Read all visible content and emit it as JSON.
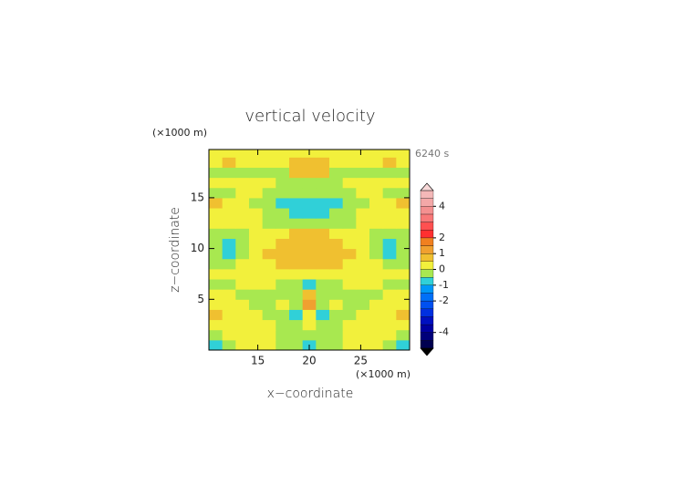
{
  "chart_data": {
    "type": "contour",
    "title": "vertical velocity",
    "time_label": "6240 s",
    "x_unit": "(×1000 m)",
    "y_unit": "(×1000 m)",
    "xlabel": "x−coordinate",
    "ylabel": "z−coordinate",
    "xlim": [
      10.25,
      29.75
    ],
    "ylim": [
      0,
      19.75
    ],
    "xticks": [
      15,
      20,
      25
    ],
    "yticks": [
      5,
      10,
      15
    ],
    "x": [
      10.9,
      12.2,
      13.5,
      14.8,
      16.1,
      17.4,
      18.7,
      20.0,
      21.3,
      22.6,
      23.9,
      25.2,
      26.5,
      27.8,
      29.1
    ],
    "y": [
      0.5,
      1.5,
      2.5,
      3.5,
      4.5,
      5.5,
      6.5,
      7.5,
      8.5,
      9.5,
      10.5,
      11.5,
      12.5,
      13.5,
      14.5,
      15.5,
      16.5,
      17.5,
      18.5,
      19.5
    ],
    "z": [
      [
        -0.7,
        -0.2,
        0.2,
        0.2,
        0.2,
        -0.2,
        -0.2,
        -0.7,
        -0.2,
        -0.2,
        0.2,
        0.2,
        0.2,
        -0.2,
        -0.7
      ],
      [
        -0.2,
        0.2,
        0.2,
        0.2,
        0.2,
        -0.2,
        -0.2,
        -0.2,
        -0.2,
        -0.2,
        0.2,
        0.2,
        0.2,
        0.2,
        -0.2
      ],
      [
        0.2,
        0.2,
        0.2,
        0.2,
        0.2,
        -0.2,
        -0.2,
        0.2,
        -0.2,
        -0.2,
        0.2,
        0.2,
        0.2,
        0.2,
        0.2
      ],
      [
        0.7,
        0.2,
        0.2,
        0.2,
        -0.2,
        -0.2,
        -0.7,
        0.2,
        -0.7,
        -0.2,
        -0.2,
        0.2,
        0.2,
        0.2,
        0.7
      ],
      [
        0.2,
        0.2,
        0.2,
        -0.2,
        -0.2,
        0.2,
        -0.2,
        1.2,
        -0.2,
        0.2,
        -0.2,
        -0.2,
        0.2,
        0.2,
        0.2
      ],
      [
        0.2,
        0.2,
        -0.2,
        -0.2,
        -0.2,
        -0.2,
        -0.2,
        0.7,
        -0.2,
        -0.2,
        -0.2,
        -0.2,
        -0.2,
        0.2,
        0.2
      ],
      [
        -0.2,
        -0.2,
        0.2,
        0.2,
        0.2,
        -0.2,
        -0.2,
        -0.7,
        -0.2,
        -0.2,
        0.2,
        0.2,
        0.2,
        -0.2,
        -0.2
      ],
      [
        0.2,
        0.2,
        0.2,
        0.2,
        0.2,
        0.2,
        0.2,
        0.2,
        0.2,
        0.2,
        0.2,
        0.2,
        0.2,
        0.2,
        0.2
      ],
      [
        -0.2,
        -0.2,
        0.2,
        0.2,
        0.2,
        0.7,
        0.7,
        0.7,
        0.7,
        0.7,
        0.2,
        0.2,
        0.2,
        -0.2,
        -0.2
      ],
      [
        -0.2,
        -0.7,
        -0.2,
        0.2,
        0.7,
        0.7,
        0.7,
        0.7,
        0.7,
        0.7,
        0.7,
        0.2,
        -0.2,
        -0.7,
        -0.2
      ],
      [
        -0.2,
        -0.7,
        -0.2,
        0.2,
        0.2,
        0.7,
        0.7,
        0.7,
        0.7,
        0.7,
        0.2,
        0.2,
        -0.2,
        -0.7,
        -0.2
      ],
      [
        -0.2,
        -0.2,
        -0.2,
        0.2,
        0.2,
        0.2,
        0.7,
        0.7,
        0.7,
        0.2,
        0.2,
        0.2,
        -0.2,
        -0.2,
        -0.2
      ],
      [
        0.2,
        0.2,
        0.2,
        0.2,
        -0.2,
        -0.2,
        -0.2,
        -0.2,
        -0.2,
        -0.2,
        -0.2,
        0.2,
        0.2,
        0.2,
        0.2
      ],
      [
        0.2,
        0.2,
        0.2,
        0.2,
        -0.2,
        -0.2,
        -0.7,
        -0.7,
        -0.7,
        -0.2,
        -0.2,
        0.2,
        0.2,
        0.2,
        0.2
      ],
      [
        0.7,
        0.2,
        0.2,
        -0.2,
        -0.2,
        -0.7,
        -0.7,
        -0.7,
        -0.7,
        -0.7,
        -0.2,
        -0.2,
        0.2,
        0.2,
        0.7
      ],
      [
        -0.2,
        -0.2,
        0.2,
        0.2,
        -0.2,
        -0.2,
        -0.2,
        -0.2,
        -0.2,
        -0.2,
        -0.2,
        0.2,
        0.2,
        -0.2,
        -0.2
      ],
      [
        0.2,
        0.2,
        0.2,
        0.2,
        0.2,
        -0.2,
        -0.2,
        -0.2,
        -0.2,
        -0.2,
        0.2,
        0.2,
        0.2,
        0.2,
        0.2
      ],
      [
        -0.2,
        -0.2,
        -0.2,
        -0.2,
        -0.2,
        -0.2,
        0.7,
        0.7,
        0.7,
        -0.2,
        -0.2,
        -0.2,
        -0.2,
        -0.2,
        -0.2
      ],
      [
        0.2,
        0.7,
        0.2,
        0.2,
        0.2,
        0.2,
        0.7,
        0.7,
        0.7,
        0.2,
        0.2,
        0.2,
        0.2,
        0.7,
        0.2
      ],
      [
        0.2,
        0.2,
        0.2,
        0.2,
        0.2,
        0.2,
        0.2,
        0.2,
        0.2,
        0.2,
        0.2,
        0.2,
        0.2,
        0.2,
        0.2
      ]
    ],
    "levels": [
      -5,
      -4.5,
      -4,
      -3.5,
      -3,
      -2.5,
      -2,
      -1.5,
      -1,
      -0.5,
      0,
      0.5,
      1,
      1.5,
      2,
      2.5,
      3,
      3.5,
      4,
      4.5,
      5
    ],
    "colors": [
      "#000050",
      "#00007a",
      "#0000a0",
      "#0010c0",
      "#0030e0",
      "#0050f0",
      "#0070f8",
      "#0098f8",
      "#30d0d8",
      "#a8e850",
      "#f2f03c",
      "#f0c030",
      "#f0a030",
      "#f08020",
      "#ff3030",
      "#ff5050",
      "#f87878",
      "#f49090",
      "#f4a8a8",
      "#f4b8b8"
    ],
    "over_color": "#f8d8d8",
    "under_color": "#000000",
    "colorbar_ticks": [
      -4,
      -2,
      -1,
      0,
      1,
      2,
      4
    ]
  }
}
